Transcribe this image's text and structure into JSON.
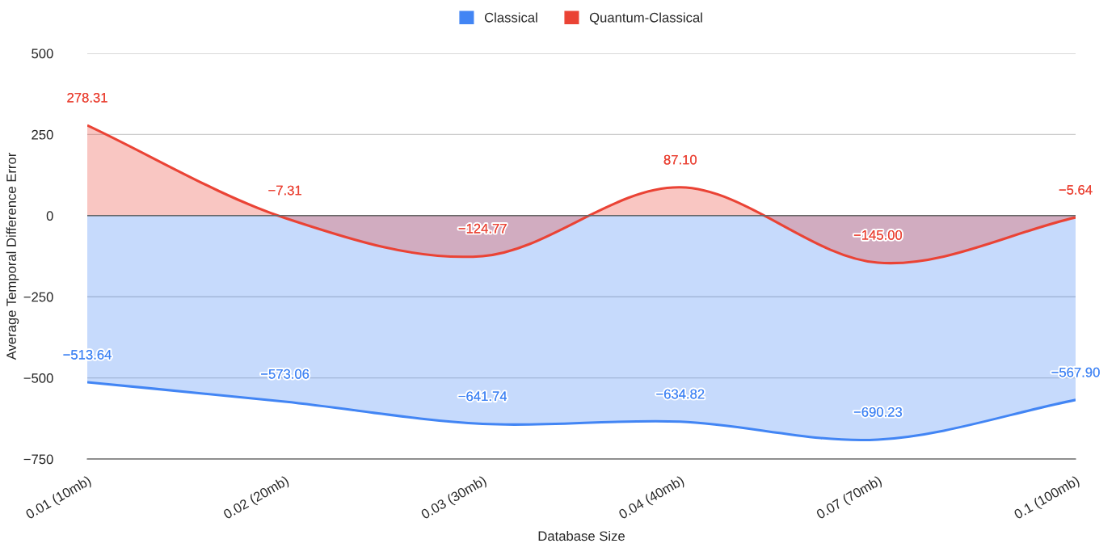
{
  "chart_data": {
    "type": "area",
    "xlabel": "Database Size",
    "ylabel": "Average Temporal Difference Error",
    "categories": [
      "0.01 (10mb)",
      "0.02 (20mb)",
      "0.03 (30mb)",
      "0.04 (40mb)",
      "0.07 (70mb)",
      "0.1 (100mb)"
    ],
    "series": [
      {
        "name": "Classical",
        "color": "#4285f4",
        "values": [
          -513.64,
          -573.06,
          -641.74,
          -634.82,
          -690.23,
          -567.9
        ],
        "value_labels": [
          "−513.64",
          "−573.06",
          "−641.74",
          "−634.82",
          "−690.23",
          "−567.90"
        ]
      },
      {
        "name": "Quantum-Classical",
        "color": "#ea4335",
        "values": [
          278.31,
          -7.31,
          -124.77,
          87.1,
          -145.0,
          -5.64
        ],
        "value_labels": [
          "278.31",
          "−7.31",
          "−124.77",
          "87.10",
          "−145.00",
          "−5.64"
        ]
      }
    ],
    "ylim": [
      -750,
      500
    ],
    "yticks": [
      {
        "value": -750,
        "label": "−750"
      },
      {
        "value": -500,
        "label": "−500"
      },
      {
        "value": -250,
        "label": "−250"
      },
      0,
      250,
      500
    ],
    "grid": "y",
    "legend": "top"
  }
}
